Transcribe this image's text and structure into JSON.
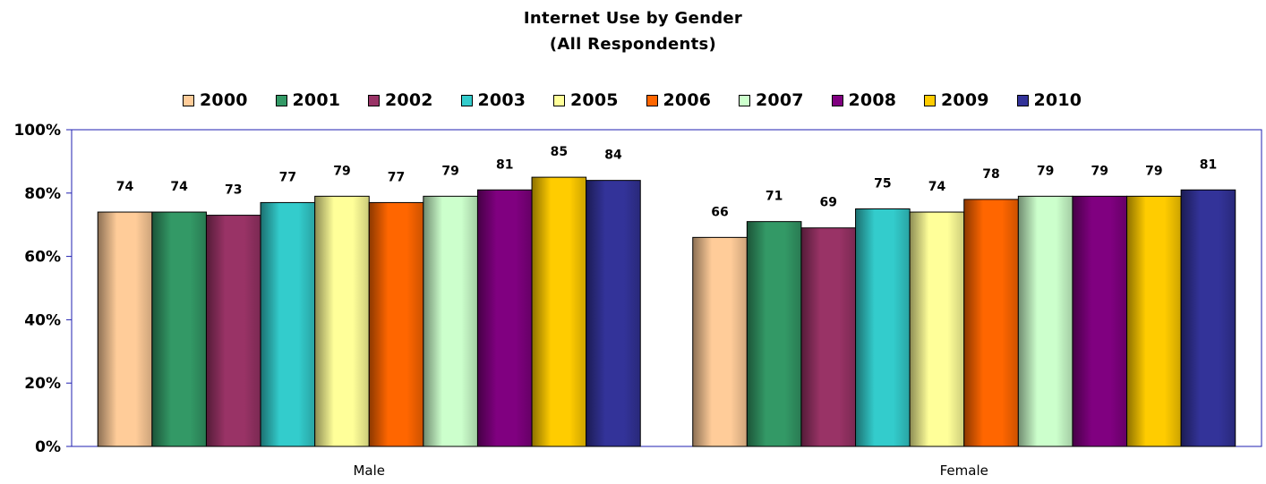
{
  "chart_data": {
    "type": "bar",
    "title": "Internet Use by Gender",
    "subtitle": "(All Respondents)",
    "xlabel": "",
    "ylabel": "",
    "categories": [
      "Male",
      "Female"
    ],
    "ylim": [
      0,
      100
    ],
    "yticks": [
      "0%",
      "20%",
      "40%",
      "60%",
      "80%",
      "100%"
    ],
    "grid": false,
    "legend_position": "top",
    "series": [
      {
        "name": "2000",
        "color": "#FFCC99",
        "values": [
          74,
          66
        ]
      },
      {
        "name": "2001",
        "color": "#339966",
        "values": [
          74,
          71
        ]
      },
      {
        "name": "2002",
        "color": "#993366",
        "values": [
          73,
          69
        ]
      },
      {
        "name": "2003",
        "color": "#33CCCC",
        "values": [
          77,
          75
        ]
      },
      {
        "name": "2005",
        "color": "#FFFF99",
        "values": [
          79,
          74
        ]
      },
      {
        "name": "2006",
        "color": "#FF6600",
        "values": [
          77,
          78
        ]
      },
      {
        "name": "2007",
        "color": "#CCFFCC",
        "values": [
          79,
          79
        ]
      },
      {
        "name": "2008",
        "color": "#800080",
        "values": [
          81,
          79
        ]
      },
      {
        "name": "2009",
        "color": "#FFCC00",
        "values": [
          85,
          79
        ]
      },
      {
        "name": "2010",
        "color": "#333399",
        "values": [
          84,
          81
        ]
      }
    ]
  }
}
